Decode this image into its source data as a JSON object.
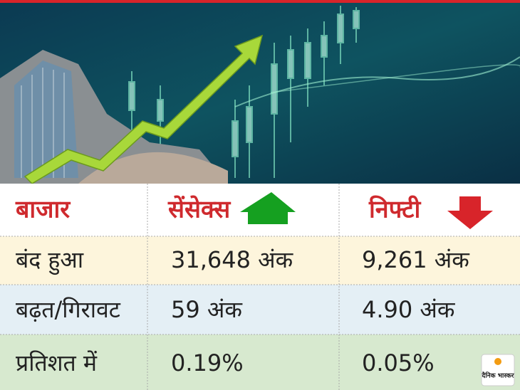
{
  "table": {
    "header": [
      "बाजार",
      "सेंसेक्स",
      "निफ्टी"
    ],
    "rows": [
      [
        "बंद हुआ",
        "31,648 अंक",
        "9,261 अंक"
      ],
      [
        "बढ़त/गिरावट",
        "59 अंक",
        "4.90 अंक"
      ],
      [
        "प्रतिशत में",
        "0.19%",
        "0.05%"
      ]
    ]
  },
  "logo": "दैनिक भास्कर"
}
